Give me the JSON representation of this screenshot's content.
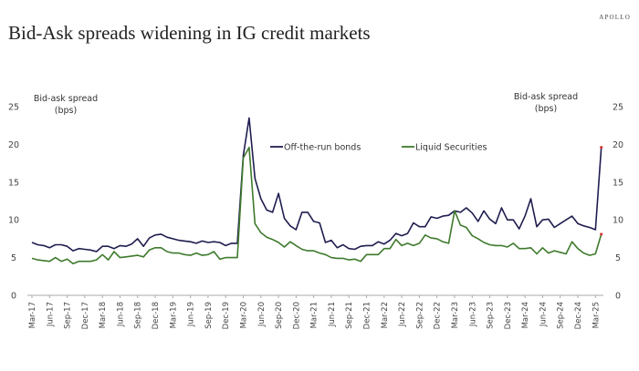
{
  "header": {
    "title": "Bid-Ask spreads widening in IG credit markets",
    "brand": "APOLLO"
  },
  "chart_data": {
    "type": "line",
    "title": "Bid-Ask spreads widening in IG credit markets",
    "ylabel_left": [
      "Bid-ask spread",
      "(bps)"
    ],
    "ylabel_right": [
      "Bid-ask spread",
      "(bps)"
    ],
    "ylim": [
      0,
      25
    ],
    "yticks": [
      0,
      5,
      10,
      15,
      20,
      25
    ],
    "x_start": "Mar-17",
    "frequency": "monthly",
    "xtick_labels": [
      "Mar-17",
      "Jun-17",
      "Sep-17",
      "Dec-17",
      "Mar-18",
      "Jun-18",
      "Sep-18",
      "Dec-18",
      "Mar-19",
      "Jun-19",
      "Sep-19",
      "Dec-19",
      "Mar-20",
      "Jun-20",
      "Sep-20",
      "Dec-20",
      "Mar-21",
      "Jun-21",
      "Sep-21",
      "Dec-21",
      "Mar-22",
      "Jun-22",
      "Sep-22",
      "Dec-22",
      "Mar-23",
      "Jun-23",
      "Sep-23",
      "Dec-23",
      "Mar-24",
      "Jun-24",
      "Sep-24",
      "Dec-24",
      "Mar-25"
    ],
    "legend_position": "top-center",
    "series": [
      {
        "name": "Off-the-run bonds",
        "color": "#1f1d4f",
        "values": [
          7.0,
          6.7,
          6.6,
          6.3,
          6.7,
          6.7,
          6.5,
          5.9,
          6.2,
          6.1,
          6.0,
          5.8,
          6.5,
          6.5,
          6.2,
          6.6,
          6.5,
          6.8,
          7.5,
          6.5,
          7.6,
          8.0,
          8.1,
          7.7,
          7.5,
          7.3,
          7.2,
          7.1,
          6.9,
          7.2,
          7.0,
          7.1,
          7.0,
          6.6,
          6.9,
          6.9,
          18.5,
          23.5,
          15.5,
          12.8,
          11.3,
          11.0,
          13.5,
          10.2,
          9.2,
          8.7,
          11.0,
          11.0,
          9.8,
          9.6,
          7.0,
          7.3,
          6.3,
          6.7,
          6.2,
          6.1,
          6.5,
          6.6,
          6.6,
          7.1,
          6.8,
          7.3,
          8.2,
          7.9,
          8.2,
          9.6,
          9.1,
          9.1,
          10.4,
          10.2,
          10.5,
          10.6,
          11.2,
          11.0,
          11.6,
          10.9,
          9.8,
          11.2,
          10.1,
          9.5,
          11.6,
          10.0,
          10.0,
          8.8,
          10.5,
          12.8,
          9.1,
          10.0,
          10.1,
          9.0,
          9.5,
          10.0,
          10.5,
          9.5,
          9.2,
          9.0,
          8.7,
          19.6
        ]
      },
      {
        "name": "Liquid Securities",
        "color": "#3e7a2c",
        "values": [
          4.9,
          4.7,
          4.6,
          4.5,
          5.0,
          4.5,
          4.8,
          4.2,
          4.5,
          4.5,
          4.5,
          4.7,
          5.4,
          4.7,
          5.8,
          5.0,
          5.1,
          5.2,
          5.3,
          5.1,
          6.0,
          6.3,
          6.3,
          5.8,
          5.6,
          5.6,
          5.4,
          5.3,
          5.6,
          5.3,
          5.4,
          5.8,
          4.8,
          5.0,
          5.0,
          5.0,
          18.2,
          19.6,
          9.5,
          8.3,
          7.7,
          7.4,
          7.0,
          6.4,
          7.1,
          6.6,
          6.1,
          5.9,
          5.9,
          5.6,
          5.4,
          5.0,
          4.9,
          4.9,
          4.7,
          4.8,
          4.5,
          5.4,
          5.4,
          5.4,
          6.2,
          6.2,
          7.4,
          6.6,
          6.9,
          6.6,
          6.9,
          8.0,
          7.6,
          7.5,
          7.1,
          6.9,
          11.2,
          9.3,
          9.0,
          7.9,
          7.5,
          7.0,
          6.7,
          6.6,
          6.6,
          6.4,
          6.9,
          6.2,
          6.2,
          6.3,
          5.5,
          6.3,
          5.6,
          5.9,
          5.7,
          5.5,
          7.1,
          6.2,
          5.6,
          5.3,
          5.5,
          8.1
        ]
      }
    ],
    "last_point_marker_color": "#d63a3a"
  }
}
